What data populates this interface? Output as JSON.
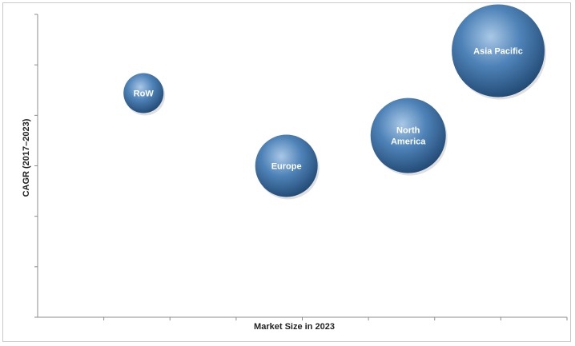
{
  "chart_data": {
    "type": "bubble",
    "title": "",
    "xlabel": "Market Size in 2023",
    "ylabel": "CAGR (2017–2023)",
    "xlim": [
      0,
      100
    ],
    "ylim": [
      0,
      100
    ],
    "x_tick_count": 8,
    "y_tick_count": 6,
    "grid": false,
    "bubble_color": "#3f73a6",
    "points": [
      {
        "label_lines": [
          "RoW"
        ],
        "x": 20,
        "y": 74,
        "size": 25
      },
      {
        "label_lines": [
          "Europe"
        ],
        "x": 47,
        "y": 50,
        "size": 39
      },
      {
        "label_lines": [
          "North",
          "America"
        ],
        "x": 70,
        "y": 60,
        "size": 47
      },
      {
        "label_lines": [
          "Asia Pacific"
        ],
        "x": 87,
        "y": 88,
        "size": 58
      }
    ]
  }
}
